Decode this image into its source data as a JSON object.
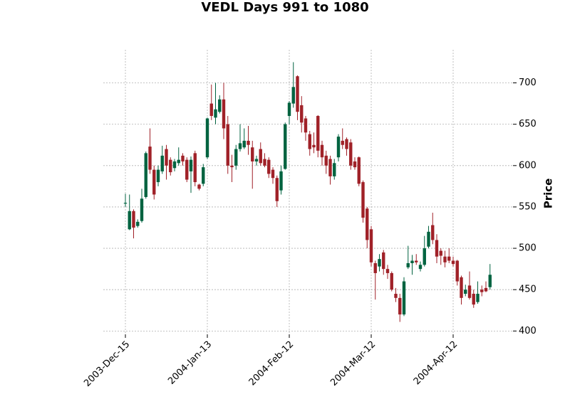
{
  "chart_data": {
    "type": "candlestick",
    "title": "VEDL Days 991 to 1080",
    "ylabel": "Price",
    "categories": [
      "2003-Dec-15",
      null,
      null,
      null,
      null,
      null,
      null,
      null,
      null,
      null,
      null,
      null,
      null,
      null,
      null,
      null,
      null,
      null,
      null,
      null,
      "2004-Jan-13",
      null,
      null,
      null,
      null,
      null,
      null,
      null,
      null,
      null,
      null,
      null,
      null,
      null,
      null,
      null,
      null,
      null,
      null,
      null,
      "2004-Feb-12",
      null,
      null,
      null,
      null,
      null,
      null,
      null,
      null,
      null,
      null,
      null,
      null,
      null,
      null,
      null,
      null,
      null,
      null,
      null,
      "2004-Mar-12",
      null,
      null,
      null,
      null,
      null,
      null,
      null,
      null,
      null,
      null,
      null,
      null,
      null,
      null,
      null,
      null,
      null,
      null,
      null,
      "2004-Apr-12",
      null,
      null,
      null,
      null,
      null,
      null,
      null,
      null,
      null
    ],
    "open": [
      554,
      523,
      545,
      527,
      533,
      562,
      623,
      595,
      580,
      593,
      620,
      607,
      597,
      603,
      612,
      607,
      593,
      615,
      577,
      578,
      610,
      675,
      658,
      665,
      680,
      650,
      600,
      600,
      620,
      622,
      630,
      622,
      605,
      620,
      608,
      607,
      595,
      585,
      570,
      596,
      660,
      675,
      708,
      673,
      657,
      638,
      625,
      660,
      625,
      612,
      608,
      587,
      610,
      630,
      632,
      628,
      605,
      610,
      580,
      548,
      523,
      482,
      478,
      495,
      475,
      470,
      445,
      440,
      420,
      477,
      482,
      485,
      475,
      480,
      502,
      528,
      510,
      497,
      490,
      490,
      485,
      485,
      465,
      445,
      455,
      445,
      435,
      450,
      452,
      453
    ],
    "high": [
      566,
      565,
      547,
      535,
      572,
      617,
      645,
      600,
      600,
      624,
      625,
      610,
      608,
      622,
      615,
      610,
      611,
      618,
      578,
      602,
      658,
      698,
      700,
      685,
      700,
      660,
      613,
      625,
      650,
      645,
      648,
      630,
      612,
      628,
      615,
      610,
      598,
      588,
      600,
      652,
      678,
      725,
      709,
      684,
      660,
      642,
      640,
      661,
      630,
      618,
      612,
      608,
      638,
      645,
      634,
      632,
      610,
      611,
      582,
      550,
      527,
      485,
      493,
      498,
      480,
      472,
      452,
      445,
      465,
      503,
      492,
      493,
      484,
      515,
      527,
      543,
      517,
      500,
      497,
      500,
      490,
      486,
      467,
      456,
      472,
      450,
      460,
      455,
      460,
      481
    ],
    "low": [
      550,
      522,
      512,
      525,
      531,
      560,
      590,
      559,
      575,
      590,
      583,
      588,
      593,
      600,
      600,
      580,
      567,
      575,
      570,
      575,
      608,
      655,
      650,
      663,
      632,
      590,
      580,
      595,
      617,
      620,
      613,
      572,
      600,
      600,
      598,
      585,
      578,
      550,
      565,
      595,
      650,
      670,
      655,
      640,
      630,
      612,
      615,
      610,
      600,
      590,
      577,
      583,
      605,
      620,
      612,
      595,
      595,
      575,
      531,
      500,
      478,
      438,
      472,
      468,
      463,
      448,
      435,
      411,
      418,
      475,
      468,
      480,
      472,
      478,
      500,
      505,
      482,
      480,
      477,
      482,
      478,
      455,
      432,
      442,
      438,
      428,
      433,
      442,
      447,
      450
    ],
    "close": [
      555,
      545,
      525,
      532,
      560,
      615,
      595,
      565,
      595,
      612,
      600,
      592,
      605,
      607,
      605,
      583,
      607,
      580,
      572,
      598,
      657,
      660,
      668,
      680,
      645,
      600,
      598,
      620,
      627,
      630,
      625,
      605,
      608,
      603,
      600,
      590,
      585,
      557,
      593,
      650,
      676,
      695,
      665,
      652,
      640,
      620,
      622,
      618,
      610,
      600,
      587,
      603,
      635,
      625,
      620,
      600,
      598,
      578,
      537,
      510,
      483,
      470,
      487,
      475,
      470,
      450,
      440,
      420,
      460,
      482,
      485,
      483,
      480,
      500,
      520,
      510,
      490,
      491,
      483,
      485,
      481,
      460,
      440,
      450,
      440,
      432,
      445,
      447,
      448,
      468
    ],
    "up_color": "#006340",
    "down_color": "#a02128",
    "ylim": [
      396,
      740
    ],
    "yticks": [
      400,
      450,
      500,
      550,
      600,
      650,
      700
    ],
    "grid": true
  }
}
